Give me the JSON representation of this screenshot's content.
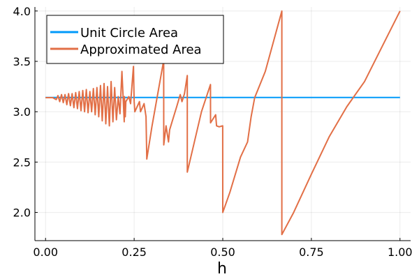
{
  "chart_data": {
    "type": "line",
    "xlabel": "h",
    "ylabel": "",
    "title": "",
    "xlim": [
      -0.03,
      1.03
    ],
    "ylim": [
      1.72,
      4.04
    ],
    "xticks": [
      0.0,
      0.25,
      0.5,
      0.75,
      1.0
    ],
    "xtick_labels": [
      "0.00",
      "0.25",
      "0.50",
      "0.75",
      "1.00"
    ],
    "yticks": [
      2.0,
      2.5,
      3.0,
      3.5,
      4.0
    ],
    "ytick_labels": [
      "2.0",
      "2.5",
      "3.0",
      "3.5",
      "4.0"
    ],
    "grid": true,
    "legend_position": "top-left",
    "series": [
      {
        "name": "Unit Circle Area",
        "color": "#009AFA",
        "x": [
          0.0,
          1.0
        ],
        "y": [
          3.1416,
          3.1416
        ]
      },
      {
        "name": "Approximated Area",
        "color": "#E26F46",
        "x": [
          0.0,
          0.02,
          0.03,
          0.035,
          0.04,
          0.045,
          0.05,
          0.055,
          0.06,
          0.065,
          0.07,
          0.075,
          0.08,
          0.085,
          0.09,
          0.095,
          0.1,
          0.105,
          0.11,
          0.115,
          0.12,
          0.125,
          0.13,
          0.135,
          0.14,
          0.145,
          0.15,
          0.155,
          0.16,
          0.165,
          0.17,
          0.175,
          0.18,
          0.185,
          0.19,
          0.195,
          0.2,
          0.205,
          0.21,
          0.2155,
          0.222,
          0.2225,
          0.225,
          0.2265,
          0.235,
          0.24,
          0.248,
          0.25,
          0.252,
          0.265,
          0.268,
          0.278,
          0.2835,
          0.2857,
          0.3,
          0.3333,
          0.3335,
          0.34,
          0.347,
          0.35,
          0.357,
          0.37,
          0.38,
          0.385,
          0.392,
          0.3999,
          0.4,
          0.44,
          0.4654,
          0.4655,
          0.48,
          0.4825,
          0.49,
          0.4999,
          0.5,
          0.52,
          0.55,
          0.57,
          0.58,
          0.59,
          0.62,
          0.6666,
          0.6667,
          0.7,
          0.75,
          0.8,
          0.85,
          0.9,
          0.95,
          1.0
        ],
        "y": [
          3.14,
          3.14,
          3.12,
          3.16,
          3.1,
          3.17,
          3.09,
          3.17,
          3.07,
          3.18,
          3.06,
          3.18,
          3.04,
          3.19,
          3.03,
          3.2,
          3.01,
          3.21,
          3.0,
          3.22,
          2.99,
          3.2,
          3.0,
          3.23,
          2.97,
          3.24,
          2.95,
          3.26,
          2.91,
          3.28,
          2.88,
          3.25,
          2.86,
          3.3,
          2.9,
          3.24,
          2.92,
          3.15,
          2.98,
          3.4,
          2.9,
          3.15,
          2.95,
          3.1,
          3.15,
          3.08,
          3.45,
          3.1,
          3.0,
          3.1,
          3.0,
          3.08,
          2.95,
          2.53,
          2.85,
          3.51,
          2.67,
          2.86,
          2.7,
          2.82,
          2.9,
          3.05,
          3.17,
          3.1,
          3.18,
          3.36,
          2.4,
          3.0,
          3.27,
          2.89,
          2.97,
          2.86,
          2.85,
          2.86,
          2.0,
          2.2,
          2.55,
          2.7,
          2.95,
          3.14,
          3.4,
          4.0,
          1.78,
          2.0,
          2.38,
          2.75,
          3.05,
          3.3,
          3.65,
          4.0
        ]
      }
    ]
  }
}
